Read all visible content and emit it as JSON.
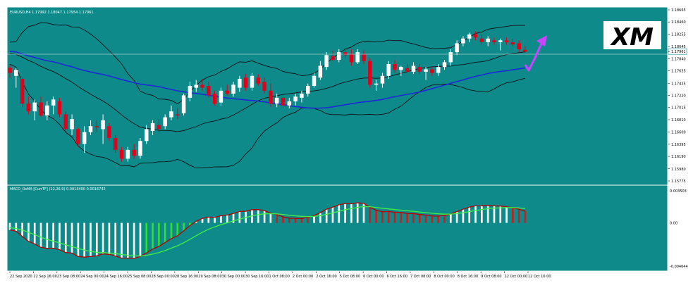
{
  "colors": {
    "background": "#0e8a8a",
    "frame": "#ffffff",
    "bull": "#ffffff",
    "bear": "#e3001b",
    "bands": "#111111",
    "ma": "#1c2bd6",
    "macd_line": "#b80000",
    "signal_line": "#44ee44",
    "hist_pos": "#ffffff",
    "hist_neg": "#33dd33",
    "hist_pos_red": "#c82020",
    "arrow": "#cc44ff"
  },
  "main_panel": {
    "title": "EURUSD,H4  1.17992 1.18047 1.17954 1.17961",
    "price_labels": [
      "1.18665",
      "1.18460",
      "1.18255",
      "1.18045",
      "1.17961",
      "1.17840",
      "1.17635",
      "1.17425",
      "1.17220",
      "1.17015",
      "1.16810",
      "1.16600",
      "1.16395",
      "1.16190",
      "1.15980",
      "1.15775"
    ],
    "current_price": "1.17961",
    "logo_text": "XM"
  },
  "macd_panel": {
    "title": "MACD_OsMA [CurrTF] (12,26,9) 0.0013400 0.0016742",
    "labels": [
      "0.003503",
      "0.00",
      "-0.004644"
    ]
  },
  "time_labels": [
    "22 Sep 2020",
    "22 Sep 16:00",
    "23 Sep 08:00",
    "24 Sep 00:00",
    "24 Sep 16:00",
    "25 Sep 08:00",
    "28 Sep 00:00",
    "28 Sep 16:00",
    "29 Sep 08:00",
    "30 Sep 00:00",
    "30 Sep 16:00",
    "1 Oct 08:00",
    "2 Oct 00:00",
    "2 Oct 16:00",
    "5 Oct 08:00",
    "6 Oct 00:00",
    "6 Oct 16:00",
    "7 Oct 08:00",
    "8 Oct 00:00",
    "8 Oct 16:00",
    "9 Oct 08:00",
    "12 Oct 00:00",
    "12 Oct 16:00"
  ],
  "chart_data": {
    "type": "candlestick",
    "symbol": "EURUSD",
    "timeframe": "H4",
    "ylim": [
      1.15775,
      1.18665
    ],
    "candles": [
      {
        "o": 1.1769,
        "h": 1.1773,
        "l": 1.1752,
        "c": 1.176
      },
      {
        "o": 1.1755,
        "h": 1.1768,
        "l": 1.1735,
        "c": 1.1765
      },
      {
        "o": 1.175,
        "h": 1.1752,
        "l": 1.1702,
        "c": 1.1708
      },
      {
        "o": 1.1708,
        "h": 1.172,
        "l": 1.169,
        "c": 1.1695
      },
      {
        "o": 1.1695,
        "h": 1.1715,
        "l": 1.168,
        "c": 1.171
      },
      {
        "o": 1.171,
        "h": 1.172,
        "l": 1.1686,
        "c": 1.1688
      },
      {
        "o": 1.1688,
        "h": 1.1712,
        "l": 1.168,
        "c": 1.1705
      },
      {
        "o": 1.1705,
        "h": 1.172,
        "l": 1.169,
        "c": 1.1715
      },
      {
        "o": 1.1712,
        "h": 1.1718,
        "l": 1.1685,
        "c": 1.169
      },
      {
        "o": 1.169,
        "h": 1.1695,
        "l": 1.166,
        "c": 1.1665
      },
      {
        "o": 1.1665,
        "h": 1.169,
        "l": 1.1655,
        "c": 1.1682
      },
      {
        "o": 1.1665,
        "h": 1.1668,
        "l": 1.1635,
        "c": 1.164
      },
      {
        "o": 1.164,
        "h": 1.167,
        "l": 1.1625,
        "c": 1.166
      },
      {
        "o": 1.166,
        "h": 1.168,
        "l": 1.1655,
        "c": 1.167
      },
      {
        "o": 1.167,
        "h": 1.168,
        "l": 1.166,
        "c": 1.1668
      },
      {
        "o": 1.1665,
        "h": 1.169,
        "l": 1.164,
        "c": 1.168
      },
      {
        "o": 1.167,
        "h": 1.1675,
        "l": 1.1645,
        "c": 1.165
      },
      {
        "o": 1.165,
        "h": 1.1655,
        "l": 1.1625,
        "c": 1.163
      },
      {
        "o": 1.163,
        "h": 1.1635,
        "l": 1.161,
        "c": 1.1615
      },
      {
        "o": 1.1615,
        "h": 1.1635,
        "l": 1.161,
        "c": 1.163
      },
      {
        "o": 1.163,
        "h": 1.164,
        "l": 1.1615,
        "c": 1.162
      },
      {
        "o": 1.162,
        "h": 1.165,
        "l": 1.1615,
        "c": 1.1645
      },
      {
        "o": 1.1645,
        "h": 1.1672,
        "l": 1.164,
        "c": 1.1665
      },
      {
        "o": 1.1662,
        "h": 1.168,
        "l": 1.1655,
        "c": 1.1675
      },
      {
        "o": 1.1672,
        "h": 1.1682,
        "l": 1.166,
        "c": 1.1665
      },
      {
        "o": 1.167,
        "h": 1.169,
        "l": 1.1665,
        "c": 1.1685
      },
      {
        "o": 1.1685,
        "h": 1.1705,
        "l": 1.168,
        "c": 1.1695
      },
      {
        "o": 1.169,
        "h": 1.17,
        "l": 1.1682,
        "c": 1.1688
      },
      {
        "o": 1.1692,
        "h": 1.1725,
        "l": 1.1688,
        "c": 1.1722
      },
      {
        "o": 1.1718,
        "h": 1.1745,
        "l": 1.1712,
        "c": 1.1738
      },
      {
        "o": 1.1735,
        "h": 1.1748,
        "l": 1.1728,
        "c": 1.174
      },
      {
        "o": 1.174,
        "h": 1.175,
        "l": 1.173,
        "c": 1.1735
      },
      {
        "o": 1.1738,
        "h": 1.1745,
        "l": 1.1718,
        "c": 1.1722
      },
      {
        "o": 1.1725,
        "h": 1.173,
        "l": 1.1705,
        "c": 1.1708
      },
      {
        "o": 1.171,
        "h": 1.1735,
        "l": 1.1705,
        "c": 1.173
      },
      {
        "o": 1.173,
        "h": 1.174,
        "l": 1.1722,
        "c": 1.1725
      },
      {
        "o": 1.1725,
        "h": 1.1745,
        "l": 1.172,
        "c": 1.174
      },
      {
        "o": 1.1735,
        "h": 1.1755,
        "l": 1.1728,
        "c": 1.175
      },
      {
        "o": 1.1752,
        "h": 1.1758,
        "l": 1.173,
        "c": 1.1735
      },
      {
        "o": 1.1735,
        "h": 1.176,
        "l": 1.173,
        "c": 1.1755
      },
      {
        "o": 1.1752,
        "h": 1.1758,
        "l": 1.1738,
        "c": 1.1742
      },
      {
        "o": 1.1745,
        "h": 1.1752,
        "l": 1.1725,
        "c": 1.173
      },
      {
        "o": 1.173,
        "h": 1.1742,
        "l": 1.1702,
        "c": 1.1708
      },
      {
        "o": 1.1708,
        "h": 1.1725,
        "l": 1.1702,
        "c": 1.1718
      },
      {
        "o": 1.1718,
        "h": 1.1722,
        "l": 1.17,
        "c": 1.1705
      },
      {
        "o": 1.1705,
        "h": 1.1718,
        "l": 1.17,
        "c": 1.1712
      },
      {
        "o": 1.1712,
        "h": 1.1725,
        "l": 1.1705,
        "c": 1.172
      },
      {
        "o": 1.1718,
        "h": 1.173,
        "l": 1.171,
        "c": 1.1725
      },
      {
        "o": 1.1725,
        "h": 1.1742,
        "l": 1.172,
        "c": 1.1738
      },
      {
        "o": 1.1738,
        "h": 1.176,
        "l": 1.1735,
        "c": 1.1755
      },
      {
        "o": 1.1752,
        "h": 1.178,
        "l": 1.1748,
        "c": 1.1772
      },
      {
        "o": 1.177,
        "h": 1.1795,
        "l": 1.1765,
        "c": 1.179
      },
      {
        "o": 1.1788,
        "h": 1.1798,
        "l": 1.178,
        "c": 1.1782
      },
      {
        "o": 1.1782,
        "h": 1.18,
        "l": 1.1778,
        "c": 1.1795
      },
      {
        "o": 1.1795,
        "h": 1.1802,
        "l": 1.1785,
        "c": 1.179
      },
      {
        "o": 1.1792,
        "h": 1.18,
        "l": 1.1772,
        "c": 1.1778
      },
      {
        "o": 1.1778,
        "h": 1.18,
        "l": 1.1775,
        "c": 1.1795
      },
      {
        "o": 1.1792,
        "h": 1.1798,
        "l": 1.1775,
        "c": 1.178
      },
      {
        "o": 1.178,
        "h": 1.1785,
        "l": 1.1735,
        "c": 1.174
      },
      {
        "o": 1.174,
        "h": 1.1748,
        "l": 1.173,
        "c": 1.1742
      },
      {
        "o": 1.1742,
        "h": 1.176,
        "l": 1.1735,
        "c": 1.1755
      },
      {
        "o": 1.1755,
        "h": 1.178,
        "l": 1.175,
        "c": 1.1775
      },
      {
        "o": 1.1775,
        "h": 1.1782,
        "l": 1.176,
        "c": 1.1765
      },
      {
        "o": 1.1765,
        "h": 1.1772,
        "l": 1.1755,
        "c": 1.177
      },
      {
        "o": 1.1768,
        "h": 1.1775,
        "l": 1.176,
        "c": 1.1762
      },
      {
        "o": 1.1762,
        "h": 1.1778,
        "l": 1.1758,
        "c": 1.1772
      },
      {
        "o": 1.177,
        "h": 1.1775,
        "l": 1.1758,
        "c": 1.1762
      },
      {
        "o": 1.1762,
        "h": 1.177,
        "l": 1.1748,
        "c": 1.1766
      },
      {
        "o": 1.1766,
        "h": 1.177,
        "l": 1.1755,
        "c": 1.176
      },
      {
        "o": 1.176,
        "h": 1.1775,
        "l": 1.1755,
        "c": 1.177
      },
      {
        "o": 1.177,
        "h": 1.1782,
        "l": 1.1765,
        "c": 1.1778
      },
      {
        "o": 1.1778,
        "h": 1.18,
        "l": 1.1772,
        "c": 1.1795
      },
      {
        "o": 1.1795,
        "h": 1.1815,
        "l": 1.179,
        "c": 1.181
      },
      {
        "o": 1.181,
        "h": 1.1822,
        "l": 1.1805,
        "c": 1.1818
      },
      {
        "o": 1.1818,
        "h": 1.1828,
        "l": 1.1812,
        "c": 1.1825
      },
      {
        "o": 1.1825,
        "h": 1.183,
        "l": 1.1815,
        "c": 1.182
      },
      {
        "o": 1.1818,
        "h": 1.1825,
        "l": 1.1808,
        "c": 1.1812
      },
      {
        "o": 1.1812,
        "h": 1.1822,
        "l": 1.1805,
        "c": 1.1818
      },
      {
        "o": 1.1815,
        "h": 1.182,
        "l": 1.1808,
        "c": 1.1812
      },
      {
        "o": 1.1812,
        "h": 1.1818,
        "l": 1.1798,
        "c": 1.1815
      },
      {
        "o": 1.1815,
        "h": 1.182,
        "l": 1.1808,
        "c": 1.1812
      },
      {
        "o": 1.1812,
        "h": 1.1818,
        "l": 1.1805,
        "c": 1.1808
      },
      {
        "o": 1.181,
        "h": 1.1815,
        "l": 1.1795,
        "c": 1.18
      },
      {
        "o": 1.1799,
        "h": 1.1805,
        "l": 1.1795,
        "c": 1.1796
      }
    ],
    "moving_average": "MA",
    "bollinger_bands": true,
    "macd": {
      "fast": 12,
      "slow": 26,
      "signal": 9,
      "value": 0.00134,
      "signal_value": 0.0016742,
      "ylim": [
        -0.004644,
        0.003503
      ]
    },
    "annotation": "up-arrow-forecast"
  }
}
